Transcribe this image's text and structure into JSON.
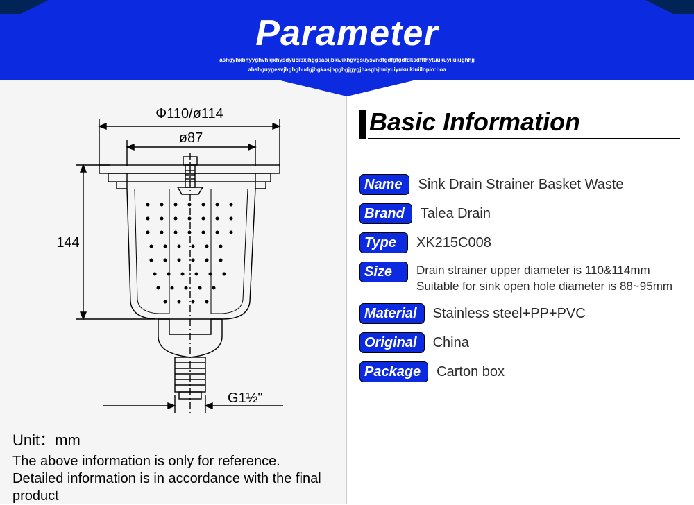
{
  "header": {
    "title": "Parameter",
    "subtitle_line1": "ashgyhxbhyyghvhkjxhysdyucibxjhggsaoijbkiJikhgvgsuysvndfgdfgfgdfdksdffthytuukuyiiuiughhjj",
    "subtitle_line2": "abshguygesvjhghghudgjhgkasjhgghgjgygjhasghjhuiyuiyukuikluiilopio:i:oa"
  },
  "colors": {
    "accent": "#0c2ae0",
    "dark_edge": "#012457",
    "label_bg": "#0c2ae0",
    "label_border": "#000000",
    "text": "#2a2a2a",
    "diagram_stroke": "#000000",
    "white": "#ffffff"
  },
  "diagram": {
    "unit_label": "Unit：mm",
    "note": "The above information is only for reference. Detailed information is in accordance with the final product",
    "dim_top1": "Φ110/ø114",
    "dim_top2": "ø87",
    "dim_height": "144",
    "dim_thread": "G1½\""
  },
  "section": {
    "title": "Basic Information"
  },
  "specs": [
    {
      "label": "Name",
      "value": "Sink Drain Strainer Basket Waste"
    },
    {
      "label": "Brand",
      "value": "Talea Drain"
    },
    {
      "label": "Type",
      "value": "XK215C008"
    },
    {
      "label": "Size",
      "value": "Drain strainer upper diameter is 110&114mm  Suitable for sink open hole diameter is 88~95mm",
      "small": true
    },
    {
      "label": "Material",
      "value": "Stainless steel+PP+PVC"
    },
    {
      "label": "Original",
      "value": "China"
    },
    {
      "label": "Package",
      "value": "Carton box"
    }
  ]
}
